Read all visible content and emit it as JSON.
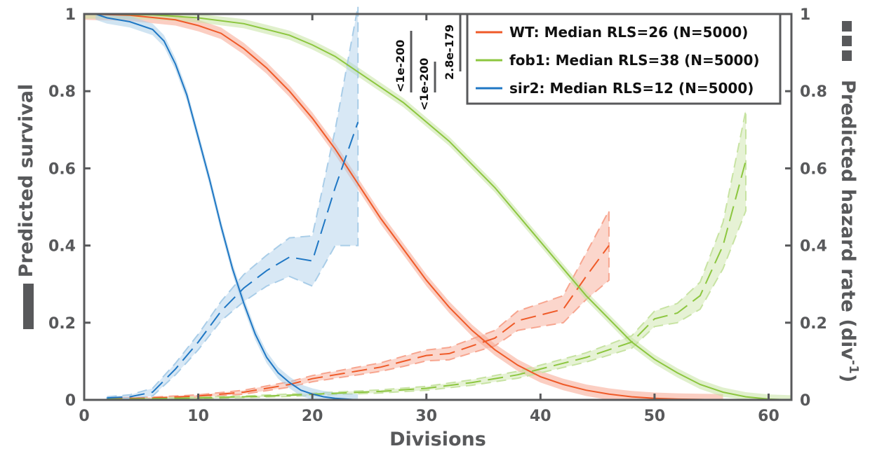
{
  "chart_data": {
    "type": "line",
    "xlabel": "Divisions",
    "ylabel_left": "Predicted survival",
    "ylabel_right_main": "Predicted hazard rate (div",
    "ylabel_right_sup": "-1",
    "ylabel_right_close": ")",
    "xlim": [
      0,
      62
    ],
    "ylim_left": [
      0,
      1
    ],
    "ylim_right": [
      0,
      1
    ],
    "x_ticks": [
      0,
      10,
      20,
      30,
      40,
      50,
      60
    ],
    "x_tick_labels": [
      "0",
      "10",
      "20",
      "30",
      "40",
      "50",
      "60"
    ],
    "y_ticks": [
      0,
      0.2,
      0.4,
      0.6,
      0.8,
      1
    ],
    "y_tick_labels_left": [
      "0",
      "0.2",
      "0.4",
      "0.6",
      "0.8",
      "1"
    ],
    "y_tick_labels_right": [
      "0",
      "0.2",
      "0.4",
      "0.6",
      "0.8",
      "1"
    ],
    "grid": false,
    "legend_position": "top-right",
    "series": [
      {
        "name": "WT: Median RLS=26 (N=5000)",
        "color": "#ef5a28",
        "band_color": "#f7a58f",
        "survival": {
          "x": [
            0,
            4,
            8,
            10,
            12,
            14,
            16,
            18,
            20,
            22,
            24,
            26,
            28,
            30,
            32,
            34,
            36,
            38,
            40,
            42,
            44,
            46,
            48,
            50,
            52,
            54,
            56
          ],
          "y": [
            1.0,
            0.997,
            0.985,
            0.97,
            0.95,
            0.91,
            0.86,
            0.8,
            0.73,
            0.65,
            0.56,
            0.47,
            0.39,
            0.31,
            0.24,
            0.18,
            0.13,
            0.09,
            0.06,
            0.04,
            0.025,
            0.015,
            0.008,
            0.004,
            0.002,
            0.001,
            0.0
          ],
          "band": 0.015
        },
        "hazard": {
          "x": [
            2,
            6,
            10,
            14,
            18,
            20,
            22,
            24,
            26,
            28,
            30,
            32,
            34,
            36,
            38,
            40,
            42,
            44,
            46
          ],
          "y": [
            0.003,
            0.005,
            0.01,
            0.02,
            0.04,
            0.055,
            0.065,
            0.075,
            0.085,
            0.1,
            0.115,
            0.12,
            0.14,
            0.16,
            0.205,
            0.22,
            0.235,
            0.32,
            0.4
          ],
          "band": [
            0.002,
            0.002,
            0.003,
            0.005,
            0.007,
            0.008,
            0.009,
            0.01,
            0.011,
            0.013,
            0.014,
            0.016,
            0.018,
            0.02,
            0.025,
            0.03,
            0.035,
            0.06,
            0.09
          ]
        }
      },
      {
        "name": "fob1: Median RLS=38 (N=5000)",
        "color": "#8cc63f",
        "band_color": "#c7e3a2",
        "survival": {
          "x": [
            0,
            6,
            10,
            14,
            18,
            20,
            22,
            24,
            26,
            28,
            30,
            32,
            34,
            36,
            38,
            40,
            42,
            44,
            46,
            48,
            50,
            52,
            54,
            56,
            58,
            60,
            62
          ],
          "y": [
            1.0,
            0.998,
            0.99,
            0.975,
            0.945,
            0.92,
            0.89,
            0.85,
            0.81,
            0.77,
            0.72,
            0.67,
            0.61,
            0.55,
            0.48,
            0.41,
            0.34,
            0.27,
            0.21,
            0.15,
            0.105,
            0.07,
            0.04,
            0.02,
            0.008,
            0.002,
            0.0
          ],
          "band": 0.012
        },
        "hazard": {
          "x": [
            2,
            6,
            10,
            14,
            18,
            22,
            26,
            30,
            34,
            38,
            42,
            44,
            46,
            48,
            50,
            52,
            54,
            56,
            58
          ],
          "y": [
            0.002,
            0.003,
            0.005,
            0.008,
            0.012,
            0.017,
            0.022,
            0.03,
            0.045,
            0.065,
            0.095,
            0.11,
            0.13,
            0.15,
            0.21,
            0.225,
            0.27,
            0.4,
            0.62
          ],
          "band": [
            0.001,
            0.001,
            0.002,
            0.002,
            0.003,
            0.003,
            0.004,
            0.005,
            0.007,
            0.009,
            0.011,
            0.012,
            0.014,
            0.016,
            0.02,
            0.025,
            0.035,
            0.06,
            0.13
          ]
        }
      },
      {
        "name": "sir2: Median RLS=12 (N=5000)",
        "color": "#1f77c4",
        "band_color": "#a9cde8",
        "survival": {
          "x": [
            1,
            2,
            4,
            6,
            7,
            8,
            9,
            10,
            11,
            12,
            13,
            14,
            15,
            16,
            17,
            18,
            19,
            20,
            21,
            22,
            23,
            24
          ],
          "y": [
            1.0,
            0.99,
            0.98,
            0.96,
            0.93,
            0.87,
            0.79,
            0.68,
            0.57,
            0.45,
            0.34,
            0.25,
            0.17,
            0.11,
            0.07,
            0.045,
            0.025,
            0.015,
            0.008,
            0.004,
            0.002,
            0.0
          ],
          "band": 0.015
        },
        "hazard": {
          "x": [
            2,
            4,
            6,
            8,
            10,
            12,
            14,
            16,
            18,
            20,
            22,
            24
          ],
          "y": [
            0.005,
            0.008,
            0.02,
            0.08,
            0.15,
            0.23,
            0.29,
            0.335,
            0.37,
            0.36,
            0.55,
            0.72
          ],
          "band": [
            0.003,
            0.005,
            0.01,
            0.015,
            0.02,
            0.025,
            0.035,
            0.04,
            0.05,
            0.065,
            0.15,
            0.32
          ]
        }
      }
    ],
    "p_values": [
      {
        "label": "<1e-200"
      },
      {
        "label": "<1e-200"
      },
      {
        "label": "2.8e-179"
      }
    ],
    "right_axis_dash_marker": "dashed"
  }
}
